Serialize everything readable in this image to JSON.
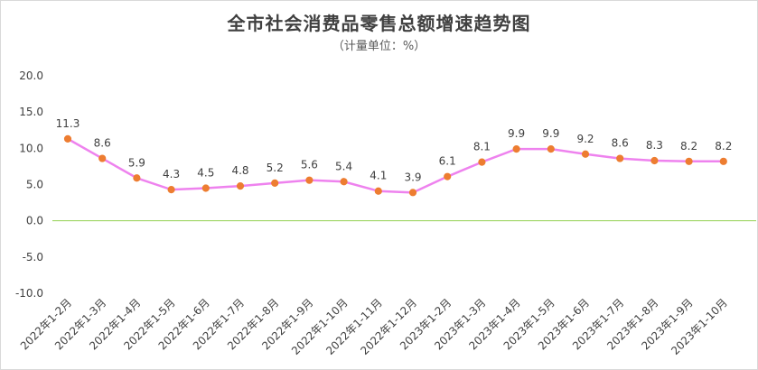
{
  "chart_data": {
    "type": "line",
    "title": "全市社会消费品零售总额增速趋势图",
    "subtitle": "（计量单位：%）",
    "categories": [
      "2022年1-2月",
      "2022年1-3月",
      "2022年1-4月",
      "2022年1-5月",
      "2022年1-6月",
      "2022年1-7月",
      "2022年1-8月",
      "2022年1-9月",
      "2022年1-10月",
      "2022年1-11月",
      "2022年1-12月",
      "2023年1-2月",
      "2023年1-3月",
      "2023年1-4月",
      "2023年1-5月",
      "2023年1-6月",
      "2023年1-7月",
      "2023年1-8月",
      "2023年1-9月",
      "2023年1-10月"
    ],
    "values": [
      11.3,
      8.6,
      5.9,
      4.3,
      4.5,
      4.8,
      5.2,
      5.6,
      5.4,
      4.1,
      3.9,
      6.1,
      8.1,
      9.9,
      9.9,
      9.2,
      8.6,
      8.3,
      8.2,
      8.2
    ],
    "data_labels": [
      "11.3",
      "8.6",
      "5.9",
      "4.3",
      "4.5",
      "4.8",
      "5.2",
      "5.6",
      "5.4",
      "4.1",
      "3.9",
      "6.1",
      "8.1",
      "9.9",
      "9.9",
      "9.2",
      "8.6",
      "8.3",
      "8.2",
      "8.2"
    ],
    "ylim": [
      -10,
      20
    ],
    "yticks": [
      "20.0",
      "15.0",
      "10.0",
      "5.0",
      "0.0",
      "-5.0",
      "-10.0"
    ],
    "ytick_values": [
      20,
      15,
      10,
      5,
      0,
      -5,
      -10
    ],
    "grid": false,
    "legend": "none",
    "colors": {
      "line": "#ee82ee",
      "marker": "#ed7d31",
      "zero_line": "#92d050",
      "text": "#404040"
    }
  }
}
